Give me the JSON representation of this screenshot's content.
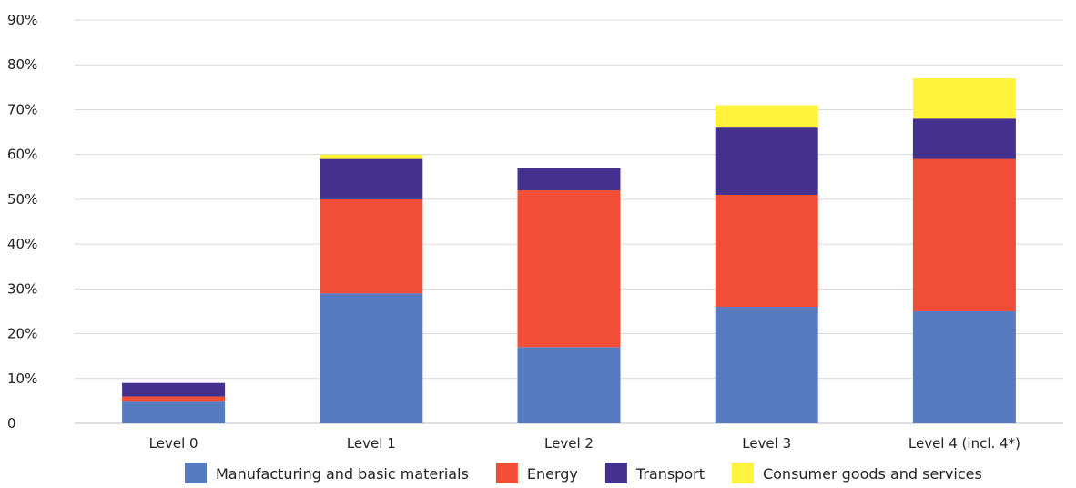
{
  "chart_data": {
    "type": "bar",
    "stacked": true,
    "categories": [
      "Level 0",
      "Level 1",
      "Level 2",
      "Level 3",
      "Level 4 (incl. 4*)"
    ],
    "series": [
      {
        "name": "Manufacturing and basic materials",
        "color": "#577BC1",
        "values": [
          5,
          29,
          17,
          26,
          25
        ]
      },
      {
        "name": "Energy",
        "color": "#F04E36",
        "values": [
          1,
          21,
          35,
          25,
          34
        ]
      },
      {
        "name": "Transport",
        "color": "#44308F",
        "values": [
          3,
          9,
          5,
          15,
          9
        ]
      },
      {
        "name": "Consumer goods and services",
        "color": "#FFF33B",
        "values": [
          0,
          1,
          0,
          5,
          9
        ]
      }
    ],
    "ylim": [
      0,
      90
    ],
    "yticks": [
      0,
      10,
      20,
      30,
      40,
      50,
      60,
      70,
      80,
      90
    ],
    "ytick_labels": [
      "0",
      "10%",
      "20%",
      "30%",
      "40%",
      "50%",
      "60%",
      "70%",
      "80%",
      "90%"
    ],
    "grid": true,
    "legend_position": "bottom"
  }
}
